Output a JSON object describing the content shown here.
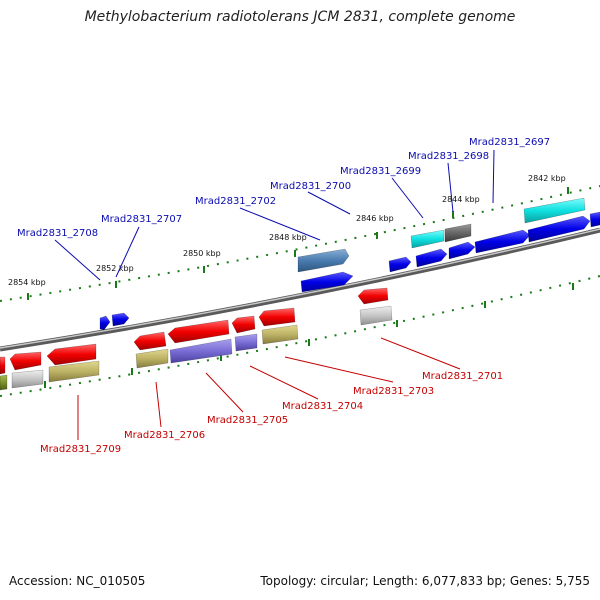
{
  "title": "Methylobacterium radiotolerans JCM 2831, complete genome",
  "colors": {
    "forward_label": "#0b0bb0",
    "reverse_label": "#c40000",
    "tick": "#1a7a1a",
    "chromosome": "#7a7a7a"
  },
  "scale": {
    "ticks": [
      {
        "label": "2842 kbp",
        "kbp": 2842
      },
      {
        "label": "2844 kbp",
        "kbp": 2844
      },
      {
        "label": "2846 kbp",
        "kbp": 2846
      },
      {
        "label": "2848 kbp",
        "kbp": 2848
      },
      {
        "label": "2850 kbp",
        "kbp": 2850
      },
      {
        "label": "2852 kbp",
        "kbp": 2852
      },
      {
        "label": "2854 kbp",
        "kbp": 2854
      }
    ]
  },
  "genes": {
    "forward_labels": [
      "Mrad2831_2697",
      "Mrad2831_2698",
      "Mrad2831_2699",
      "Mrad2831_2700",
      "Mrad2831_2702",
      "Mrad2831_2707",
      "Mrad2831_2708"
    ],
    "reverse_labels": [
      "Mrad2831_2701",
      "Mrad2831_2703",
      "Mrad2831_2704",
      "Mrad2831_2705",
      "Mrad2831_2706",
      "Mrad2831_2709"
    ]
  },
  "footer": {
    "accession": "Accession: NC_010505",
    "summary": "Topology: circular; Length: 6,077,833 bp; Genes: 5,755"
  }
}
